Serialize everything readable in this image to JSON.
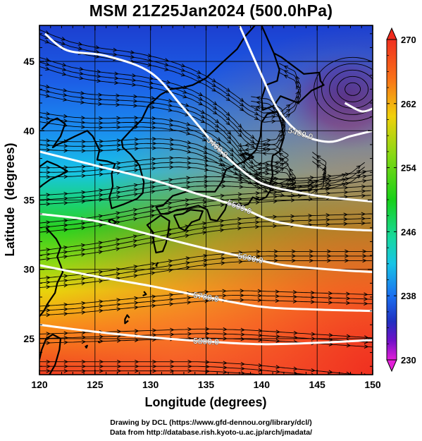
{
  "title": "MSM 21Z25Jan2024 (500.0hPa)",
  "credits": [
    "Drawing by DCL (https://www.gfd-dennou.org/library/dcl/)",
    "Data from http://database.rish.kyoto-u.ac.jp/arch/jmadata/"
  ],
  "map": {
    "xlabel": "Longitude (degrees)",
    "ylabel": "Latitude  (degrees)",
    "xlim": [
      120,
      150
    ],
    "ylim": [
      22.4,
      47.6
    ],
    "x_ticks": [
      "120",
      "125",
      "130",
      "135",
      "140",
      "145",
      "150"
    ],
    "y_ticks": [
      "25",
      "30",
      "35",
      "40",
      "45"
    ],
    "contours": [
      {
        "label": "5400.0",
        "points": [
          [
            120.5,
            47.0
          ],
          [
            122.5,
            45.8
          ],
          [
            126.0,
            45.4
          ],
          [
            130.0,
            44.2
          ],
          [
            133.0,
            41.6
          ],
          [
            136.0,
            38.8
          ],
          [
            138.0,
            37.3
          ],
          [
            140.0,
            36.2
          ],
          [
            143.0,
            35.6
          ],
          [
            146.0,
            35.2
          ],
          [
            150.0,
            34.9
          ]
        ]
      },
      {
        "label": "5400.0",
        "points": [
          [
            138.0,
            47.6
          ],
          [
            140.0,
            44.0
          ],
          [
            141.5,
            41.5
          ],
          [
            143.5,
            39.8
          ],
          [
            146.0,
            39.2
          ],
          [
            148.0,
            39.6
          ],
          [
            150.0,
            40.0
          ]
        ]
      },
      {
        "label": "",
        "points": [
          [
            147.5,
            42.0
          ],
          [
            149.0,
            41.4
          ],
          [
            150.0,
            41.6
          ]
        ]
      },
      {
        "label": "5500.0",
        "points": [
          [
            120.0,
            38.5
          ],
          [
            125.0,
            37.5
          ],
          [
            130.0,
            36.5
          ],
          [
            134.0,
            35.5
          ],
          [
            138.0,
            34.5
          ],
          [
            141.0,
            33.5
          ],
          [
            145.0,
            33.0
          ],
          [
            150.0,
            32.8
          ]
        ]
      },
      {
        "label": "5600.0",
        "points": [
          [
            120.0,
            34.0
          ],
          [
            125.0,
            33.5
          ],
          [
            130.0,
            32.5
          ],
          [
            135.0,
            31.5
          ],
          [
            139.0,
            30.8
          ],
          [
            142.0,
            30.3
          ],
          [
            146.0,
            30.0
          ],
          [
            150.0,
            29.8
          ]
        ]
      },
      {
        "label": "5700.0",
        "points": [
          [
            120.0,
            30.3
          ],
          [
            125.0,
            29.5
          ],
          [
            130.0,
            28.8
          ],
          [
            135.0,
            28.0
          ],
          [
            140.0,
            27.3
          ],
          [
            145.0,
            27.1
          ],
          [
            150.0,
            27.0
          ]
        ]
      },
      {
        "label": "5800.0",
        "points": [
          [
            120.0,
            26.0
          ],
          [
            125.0,
            25.5
          ],
          [
            130.0,
            25.1
          ],
          [
            135.0,
            24.8
          ],
          [
            140.0,
            24.6
          ],
          [
            145.0,
            24.7
          ],
          [
            150.0,
            24.9
          ]
        ]
      }
    ],
    "coastline": [
      [
        [
          130.9,
          42.6
        ],
        [
          131.8,
          43.0
        ],
        [
          132.8,
          43.1
        ],
        [
          133.8,
          43.3
        ],
        [
          135.0,
          43.8
        ],
        [
          136.3,
          44.8
        ],
        [
          137.8,
          45.9
        ],
        [
          138.5,
          46.8
        ],
        [
          139.4,
          47.6
        ]
      ],
      [
        [
          130.9,
          42.6
        ],
        [
          129.8,
          41.8
        ],
        [
          129.2,
          40.8
        ],
        [
          128.2,
          40.0
        ],
        [
          127.4,
          39.3
        ],
        [
          127.5,
          38.8
        ],
        [
          128.2,
          38.3
        ],
        [
          129.0,
          37.5
        ],
        [
          129.4,
          36.3
        ],
        [
          129.3,
          35.5
        ],
        [
          128.8,
          35.1
        ],
        [
          127.6,
          34.7
        ],
        [
          126.5,
          34.4
        ],
        [
          126.3,
          35.2
        ],
        [
          126.6,
          36.0
        ],
        [
          126.5,
          36.9
        ],
        [
          126.8,
          37.6
        ],
        [
          126.1,
          37.8
        ],
        [
          125.2,
          37.9
        ],
        [
          125.4,
          38.6
        ],
        [
          124.8,
          39.6
        ],
        [
          124.3,
          40.0
        ],
        [
          123.2,
          39.6
        ],
        [
          122.2,
          39.2
        ],
        [
          121.6,
          39.0
        ],
        [
          121.2,
          38.8
        ],
        [
          121.9,
          39.6
        ],
        [
          122.3,
          40.5
        ],
        [
          121.6,
          40.9
        ],
        [
          121.0,
          40.7
        ],
        [
          120.2,
          40.1
        ]
      ],
      [
        [
          120.0,
          37.4
        ],
        [
          120.7,
          37.8
        ],
        [
          121.6,
          37.5
        ],
        [
          122.5,
          37.1
        ],
        [
          121.9,
          36.8
        ],
        [
          121.0,
          36.5
        ],
        [
          120.3,
          36.1
        ],
        [
          120.0,
          35.9
        ]
      ],
      [
        [
          120.6,
          33.0
        ],
        [
          121.5,
          32.2
        ],
        [
          121.9,
          31.6
        ],
        [
          121.6,
          30.9
        ],
        [
          121.9,
          30.3
        ],
        [
          122.1,
          29.8
        ],
        [
          121.6,
          29.0
        ],
        [
          121.4,
          28.3
        ],
        [
          120.8,
          27.6
        ],
        [
          120.4,
          27.0
        ],
        [
          120.0,
          26.6
        ]
      ],
      [
        [
          120.6,
          25.0
        ],
        [
          121.2,
          25.3
        ],
        [
          121.9,
          25.0
        ],
        [
          121.8,
          24.2
        ],
        [
          121.4,
          23.1
        ],
        [
          120.9,
          22.4
        ]
      ],
      [
        [
          120.6,
          25.0
        ],
        [
          120.2,
          24.2
        ],
        [
          120.0,
          23.5
        ]
      ],
      [
        [
          140.0,
          47.6
        ],
        [
          141.1,
          45.6
        ],
        [
          141.8,
          45.3
        ],
        [
          142.8,
          44.7
        ],
        [
          143.8,
          44.1
        ],
        [
          145.2,
          44.2
        ],
        [
          145.3,
          43.6
        ],
        [
          145.6,
          43.3
        ],
        [
          144.5,
          42.9
        ],
        [
          143.3,
          42.0
        ],
        [
          141.7,
          42.5
        ],
        [
          141.1,
          41.8
        ],
        [
          140.1,
          41.5
        ],
        [
          140.0,
          42.3
        ],
        [
          140.4,
          43.3
        ],
        [
          141.4,
          43.6
        ],
        [
          141.6,
          44.4
        ],
        [
          141.1,
          45.6
        ]
      ],
      [
        [
          141.4,
          41.4
        ],
        [
          141.8,
          40.5
        ],
        [
          142.0,
          39.5
        ],
        [
          141.6,
          38.5
        ],
        [
          141.0,
          38.2
        ],
        [
          140.9,
          37.6
        ],
        [
          141.0,
          36.8
        ],
        [
          140.7,
          36.0
        ],
        [
          140.8,
          35.7
        ],
        [
          140.4,
          35.2
        ],
        [
          139.8,
          35.0
        ],
        [
          139.2,
          35.2
        ],
        [
          138.8,
          34.7
        ],
        [
          138.3,
          34.6
        ],
        [
          137.6,
          34.7
        ],
        [
          136.9,
          34.8
        ],
        [
          136.7,
          34.3
        ],
        [
          136.0,
          33.5
        ],
        [
          135.4,
          33.6
        ],
        [
          135.1,
          34.3
        ],
        [
          134.3,
          34.6
        ],
        [
          133.3,
          34.4
        ],
        [
          132.4,
          34.3
        ],
        [
          131.5,
          34.0
        ],
        [
          130.9,
          34.0
        ],
        [
          130.5,
          34.5
        ],
        [
          131.1,
          34.6
        ],
        [
          132.0,
          35.3
        ],
        [
          133.2,
          35.6
        ],
        [
          134.6,
          35.6
        ],
        [
          135.8,
          35.6
        ],
        [
          136.4,
          36.3
        ],
        [
          136.8,
          37.2
        ],
        [
          137.3,
          37.4
        ],
        [
          138.5,
          37.8
        ],
        [
          139.5,
          38.6
        ],
        [
          139.9,
          39.6
        ],
        [
          140.0,
          40.6
        ],
        [
          140.5,
          41.2
        ],
        [
          141.4,
          41.4
        ]
      ],
      [
        [
          132.1,
          33.9
        ],
        [
          132.6,
          33.0
        ],
        [
          133.1,
          32.8
        ],
        [
          133.7,
          33.4
        ],
        [
          134.4,
          33.6
        ],
        [
          134.7,
          34.2
        ],
        [
          133.6,
          34.3
        ],
        [
          132.9,
          34.0
        ],
        [
          132.1,
          33.9
        ]
      ],
      [
        [
          130.9,
          33.9
        ],
        [
          131.7,
          33.5
        ],
        [
          131.6,
          32.7
        ],
        [
          131.4,
          31.9
        ],
        [
          131.1,
          31.3
        ],
        [
          130.5,
          31.2
        ],
        [
          130.3,
          31.9
        ],
        [
          130.2,
          32.7
        ],
        [
          129.7,
          33.2
        ],
        [
          130.4,
          33.6
        ],
        [
          130.9,
          33.9
        ]
      ],
      [
        [
          126.2,
          33.5
        ],
        [
          126.6,
          33.2
        ],
        [
          126.9,
          33.4
        ],
        [
          126.5,
          33.6
        ],
        [
          126.2,
          33.5
        ]
      ],
      [
        [
          139.3,
          38.1
        ],
        [
          138.6,
          37.9
        ],
        [
          138.2,
          38.3
        ],
        [
          138.6,
          38.4
        ],
        [
          139.3,
          38.1
        ]
      ],
      [
        [
          128.1,
          26.5
        ],
        [
          127.9,
          26.7
        ],
        [
          127.7,
          26.4
        ],
        [
          127.7,
          26.1
        ],
        [
          128.0,
          26.3
        ]
      ],
      [
        [
          129.4,
          28.4
        ],
        [
          129.6,
          28.2
        ],
        [
          129.3,
          28.1
        ]
      ],
      [
        [
          130.7,
          30.5
        ],
        [
          130.5,
          30.3
        ],
        [
          130.6,
          30.2
        ]
      ],
      [
        [
          124.1,
          24.4
        ],
        [
          124.3,
          24.5
        ],
        [
          124.2,
          24.3
        ]
      ],
      [
        [
          125.3,
          24.8
        ],
        [
          125.4,
          24.7
        ]
      ]
    ],
    "wind_directions": [
      {
        "lat": 47.0,
        "deg": [
          -25,
          -22,
          -15,
          -10,
          -8,
          -10,
          -14,
          -18,
          -22,
          -28,
          -34,
          -38,
          -40,
          -30,
          5,
          40,
          70,
          110,
          150
        ]
      },
      {
        "lat": 45.0,
        "deg": [
          -20,
          -18,
          -12,
          -8,
          -6,
          -8,
          -12,
          -16,
          -22,
          -30,
          -38,
          -45,
          -50,
          -40,
          10,
          60,
          100,
          140,
          170
        ]
      },
      {
        "lat": 43.0,
        "deg": [
          -15,
          -12,
          -8,
          -4,
          -2,
          -4,
          -8,
          -12,
          -20,
          -30,
          -40,
          -50,
          -55,
          -45,
          -10,
          40,
          140,
          175,
          190
        ]
      },
      {
        "lat": 41.0,
        "deg": [
          -10,
          -8,
          -4,
          0,
          2,
          0,
          -4,
          -10,
          -18,
          -28,
          -38,
          -46,
          -50,
          -40,
          -20,
          20,
          120,
          170,
          200
        ]
      },
      {
        "lat": 39.0,
        "deg": [
          -4,
          -2,
          0,
          2,
          4,
          4,
          0,
          -6,
          -14,
          -24,
          -32,
          -36,
          -34,
          -26,
          -10,
          5,
          30,
          80,
          140
        ]
      },
      {
        "lat": 37.0,
        "deg": [
          0,
          2,
          4,
          6,
          8,
          8,
          6,
          2,
          -4,
          -12,
          -18,
          -20,
          -16,
          -10,
          -4,
          2,
          8,
          20,
          40
        ]
      },
      {
        "lat": 35.0,
        "deg": [
          4,
          4,
          6,
          8,
          10,
          10,
          10,
          8,
          6,
          2,
          -2,
          -4,
          -2,
          0,
          2,
          4,
          6,
          8,
          10
        ]
      },
      {
        "lat": 33.0,
        "deg": [
          6,
          6,
          8,
          10,
          12,
          12,
          12,
          12,
          10,
          8,
          6,
          4,
          4,
          4,
          4,
          4,
          4,
          4,
          4
        ]
      },
      {
        "lat": 31.0,
        "deg": [
          8,
          8,
          8,
          10,
          12,
          12,
          12,
          12,
          12,
          10,
          8,
          6,
          4,
          2,
          2,
          2,
          2,
          2,
          2
        ]
      },
      {
        "lat": 29.0,
        "deg": [
          6,
          6,
          8,
          8,
          10,
          10,
          10,
          10,
          10,
          8,
          6,
          4,
          2,
          0,
          0,
          0,
          0,
          0,
          0
        ]
      },
      {
        "lat": 27.0,
        "deg": [
          4,
          4,
          6,
          6,
          6,
          6,
          6,
          6,
          6,
          4,
          2,
          0,
          -2,
          -2,
          -2,
          -2,
          -2,
          -2,
          -2
        ]
      },
      {
        "lat": 25.0,
        "deg": [
          2,
          2,
          2,
          2,
          2,
          2,
          2,
          2,
          2,
          0,
          -2,
          -2,
          -4,
          -4,
          -4,
          -4,
          -4,
          -4,
          -4
        ]
      },
      {
        "lat": 23.0,
        "deg": [
          0,
          0,
          0,
          0,
          0,
          0,
          0,
          0,
          0,
          -2,
          -4,
          -4,
          -6,
          -6,
          -6,
          -6,
          -6,
          -6,
          -6
        ]
      }
    ],
    "temperature_field_colorscale": [
      {
        "value": 230,
        "color": "#e21fd8"
      },
      {
        "value": 234,
        "color": "#8a0fc8"
      },
      {
        "value": 236,
        "color": "#3a10b0"
      },
      {
        "value": 238,
        "color": "#1840d0"
      },
      {
        "value": 242,
        "color": "#1a78f0"
      },
      {
        "value": 246,
        "color": "#18c0e8"
      },
      {
        "value": 250,
        "color": "#18d898"
      },
      {
        "value": 254,
        "color": "#18d018"
      },
      {
        "value": 258,
        "color": "#80dc10"
      },
      {
        "value": 262,
        "color": "#f0d808"
      },
      {
        "value": 266,
        "color": "#f88010"
      },
      {
        "value": 270,
        "color": "#f02010"
      }
    ]
  },
  "colorbar": {
    "ticks": [
      "270",
      "262",
      "254",
      "246",
      "238",
      "230"
    ]
  }
}
